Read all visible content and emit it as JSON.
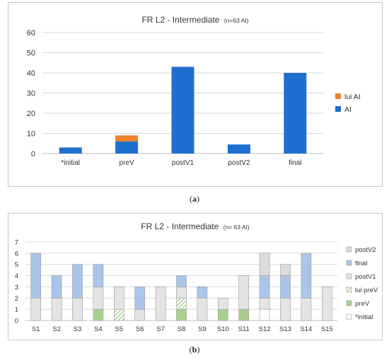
{
  "figure": {
    "caption_a": "a",
    "caption_b": "b"
  },
  "colors": {
    "ai": "#1f6fd0",
    "lui_ai": "#f0802d",
    "grid": "#d9d9d9",
    "postV2": "#dcdcdc",
    "final": "#a9c5ea",
    "postV1": "#e4e4e4",
    "lui_preV_hatch": "#70ad47",
    "preV": "#a9d08e",
    "initial": "#ffffff"
  },
  "chart_data": [
    {
      "type": "bar",
      "stacked": true,
      "title": "FR L2 - Intermediate",
      "subtitle": "(n=63 AI)",
      "categories": [
        "*initial",
        "preV",
        "postV1",
        "postV2",
        "final"
      ],
      "series": [
        {
          "name": "AI",
          "values": [
            3,
            6,
            43,
            4.5,
            40
          ]
        },
        {
          "name": "lui AI",
          "values": [
            0,
            3,
            0,
            0,
            0
          ]
        }
      ],
      "ylim": [
        0,
        60
      ],
      "yticks": [
        "0",
        "10",
        "20",
        "30",
        "40",
        "50",
        "60"
      ],
      "grid": true,
      "legend": "right"
    },
    {
      "type": "bar",
      "stacked": true,
      "title": "FR L2 - Intermediate",
      "subtitle": "(n= 63 AI)",
      "categories": [
        "S1",
        "S2",
        "S3",
        "S4",
        "S5",
        "S6",
        "S7",
        "S8",
        "S9",
        "S10",
        "S11",
        "S12",
        "S13",
        "S14",
        "S15"
      ],
      "series": [
        {
          "name": "*initial",
          "values": [
            0,
            0,
            0,
            0,
            0,
            0,
            0,
            0,
            0,
            0,
            0,
            1,
            0,
            0,
            0
          ]
        },
        {
          "name": "preV",
          "values": [
            0,
            0,
            0,
            1,
            0,
            0,
            0,
            1,
            0,
            1,
            1,
            0,
            0,
            0,
            0
          ]
        },
        {
          "name": "lui preV",
          "values": [
            0,
            0,
            0,
            0,
            1,
            0,
            0,
            1,
            0,
            0,
            0,
            0,
            0,
            0,
            0
          ]
        },
        {
          "name": "postV1",
          "values": [
            2,
            2,
            2,
            2,
            2,
            1,
            3,
            1,
            2,
            1,
            3,
            1,
            2,
            2,
            3
          ]
        },
        {
          "name": "final",
          "values": [
            4,
            2,
            3,
            2,
            0,
            2,
            0,
            1,
            1,
            0,
            0,
            2,
            2,
            4,
            0
          ]
        },
        {
          "name": "postV2",
          "values": [
            0,
            0,
            0,
            0,
            0,
            0,
            0,
            0,
            0,
            0,
            0,
            2,
            1,
            0,
            0
          ]
        }
      ],
      "legend_order": [
        "postV2",
        "final",
        "postV1",
        "lui preV",
        "preV",
        "*initial"
      ],
      "ylim": [
        0,
        7
      ],
      "yticks": [
        "0",
        "1",
        "2",
        "3",
        "4",
        "5",
        "6",
        "7"
      ],
      "grid": true,
      "legend": "right"
    }
  ]
}
